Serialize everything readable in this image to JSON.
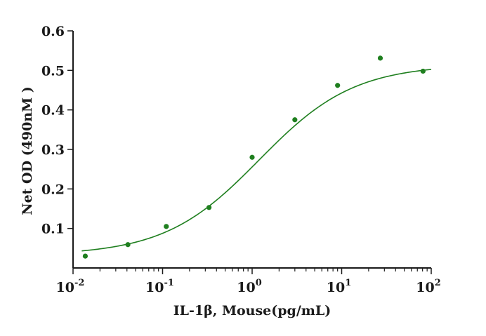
{
  "chart_data": {
    "type": "scatter",
    "xscale": "log",
    "xlabel": "IL-1β, Mouse(pg/mL)",
    "ylabel": "Net OD (490nM )",
    "xlim": [
      0.01,
      100
    ],
    "ylim": [
      0.0,
      0.6
    ],
    "x_ticks": [
      {
        "base": "10",
        "exp": "-2",
        "value": 0.01
      },
      {
        "base": "10",
        "exp": "-1",
        "value": 0.1
      },
      {
        "base": "10",
        "exp": "0",
        "value": 1
      },
      {
        "base": "10",
        "exp": "1",
        "value": 10
      },
      {
        "base": "10",
        "exp": "2",
        "value": 100
      }
    ],
    "y_ticks": [
      "0.1",
      "0.2",
      "0.3",
      "0.4",
      "0.5",
      "0.6"
    ],
    "series": [
      {
        "points": [
          {
            "x": 0.0137,
            "y": 0.03
          },
          {
            "x": 0.041,
            "y": 0.059
          },
          {
            "x": 0.11,
            "y": 0.105
          },
          {
            "x": 0.33,
            "y": 0.153
          },
          {
            "x": 1.0,
            "y": 0.28
          },
          {
            "x": 3.0,
            "y": 0.375
          },
          {
            "x": 9.0,
            "y": 0.462
          },
          {
            "x": 27.0,
            "y": 0.531
          },
          {
            "x": 81.0,
            "y": 0.498
          }
        ],
        "fit": {
          "model": "4PL",
          "bottom": 0.032,
          "top": 0.515,
          "ec50": 1.2,
          "hill": 0.82
        }
      }
    ],
    "colors": {
      "series": "#1f7f1f",
      "axis": "#1a1a1a"
    },
    "grid": false
  }
}
